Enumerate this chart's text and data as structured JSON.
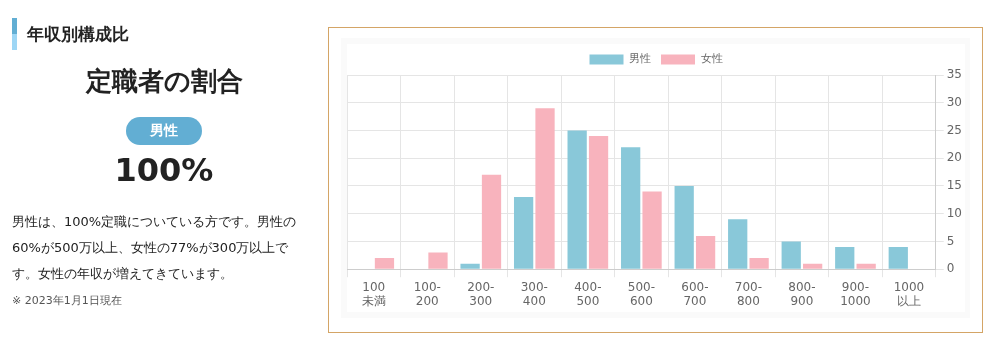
{
  "chart_data": {
    "type": "bar",
    "title": "年収別構成比",
    "subtitle": "定職者の割合",
    "annotations": [
      "男性",
      "100%",
      "男性は、100%定職についている方です。男性の60%が500万以上、女性の77%が300万以上です。女性の年収が増えてきています。",
      "※ 2023年1月1日現在"
    ],
    "categories": [
      "100\n未満",
      "100-\n200",
      "200-\n300",
      "300-\n400",
      "400-\n500",
      "500-\n600",
      "600-\n700",
      "700-\n800",
      "800-\n900",
      "900-\n1000",
      "1000\n以上"
    ],
    "series": [
      {
        "name": "男性",
        "color": "#89c8d9",
        "values": [
          0,
          0,
          1,
          13,
          25,
          22,
          15,
          9,
          5,
          4,
          4
        ]
      },
      {
        "name": "女性",
        "color": "#f8b3bd",
        "values": [
          2,
          3,
          17,
          29,
          24,
          14,
          6,
          2,
          1,
          1,
          0
        ]
      }
    ],
    "ylim": [
      0,
      35
    ],
    "yticks": [
      0,
      5,
      10,
      15,
      20,
      25,
      30,
      35
    ],
    "grid": true,
    "legend": "top"
  }
}
